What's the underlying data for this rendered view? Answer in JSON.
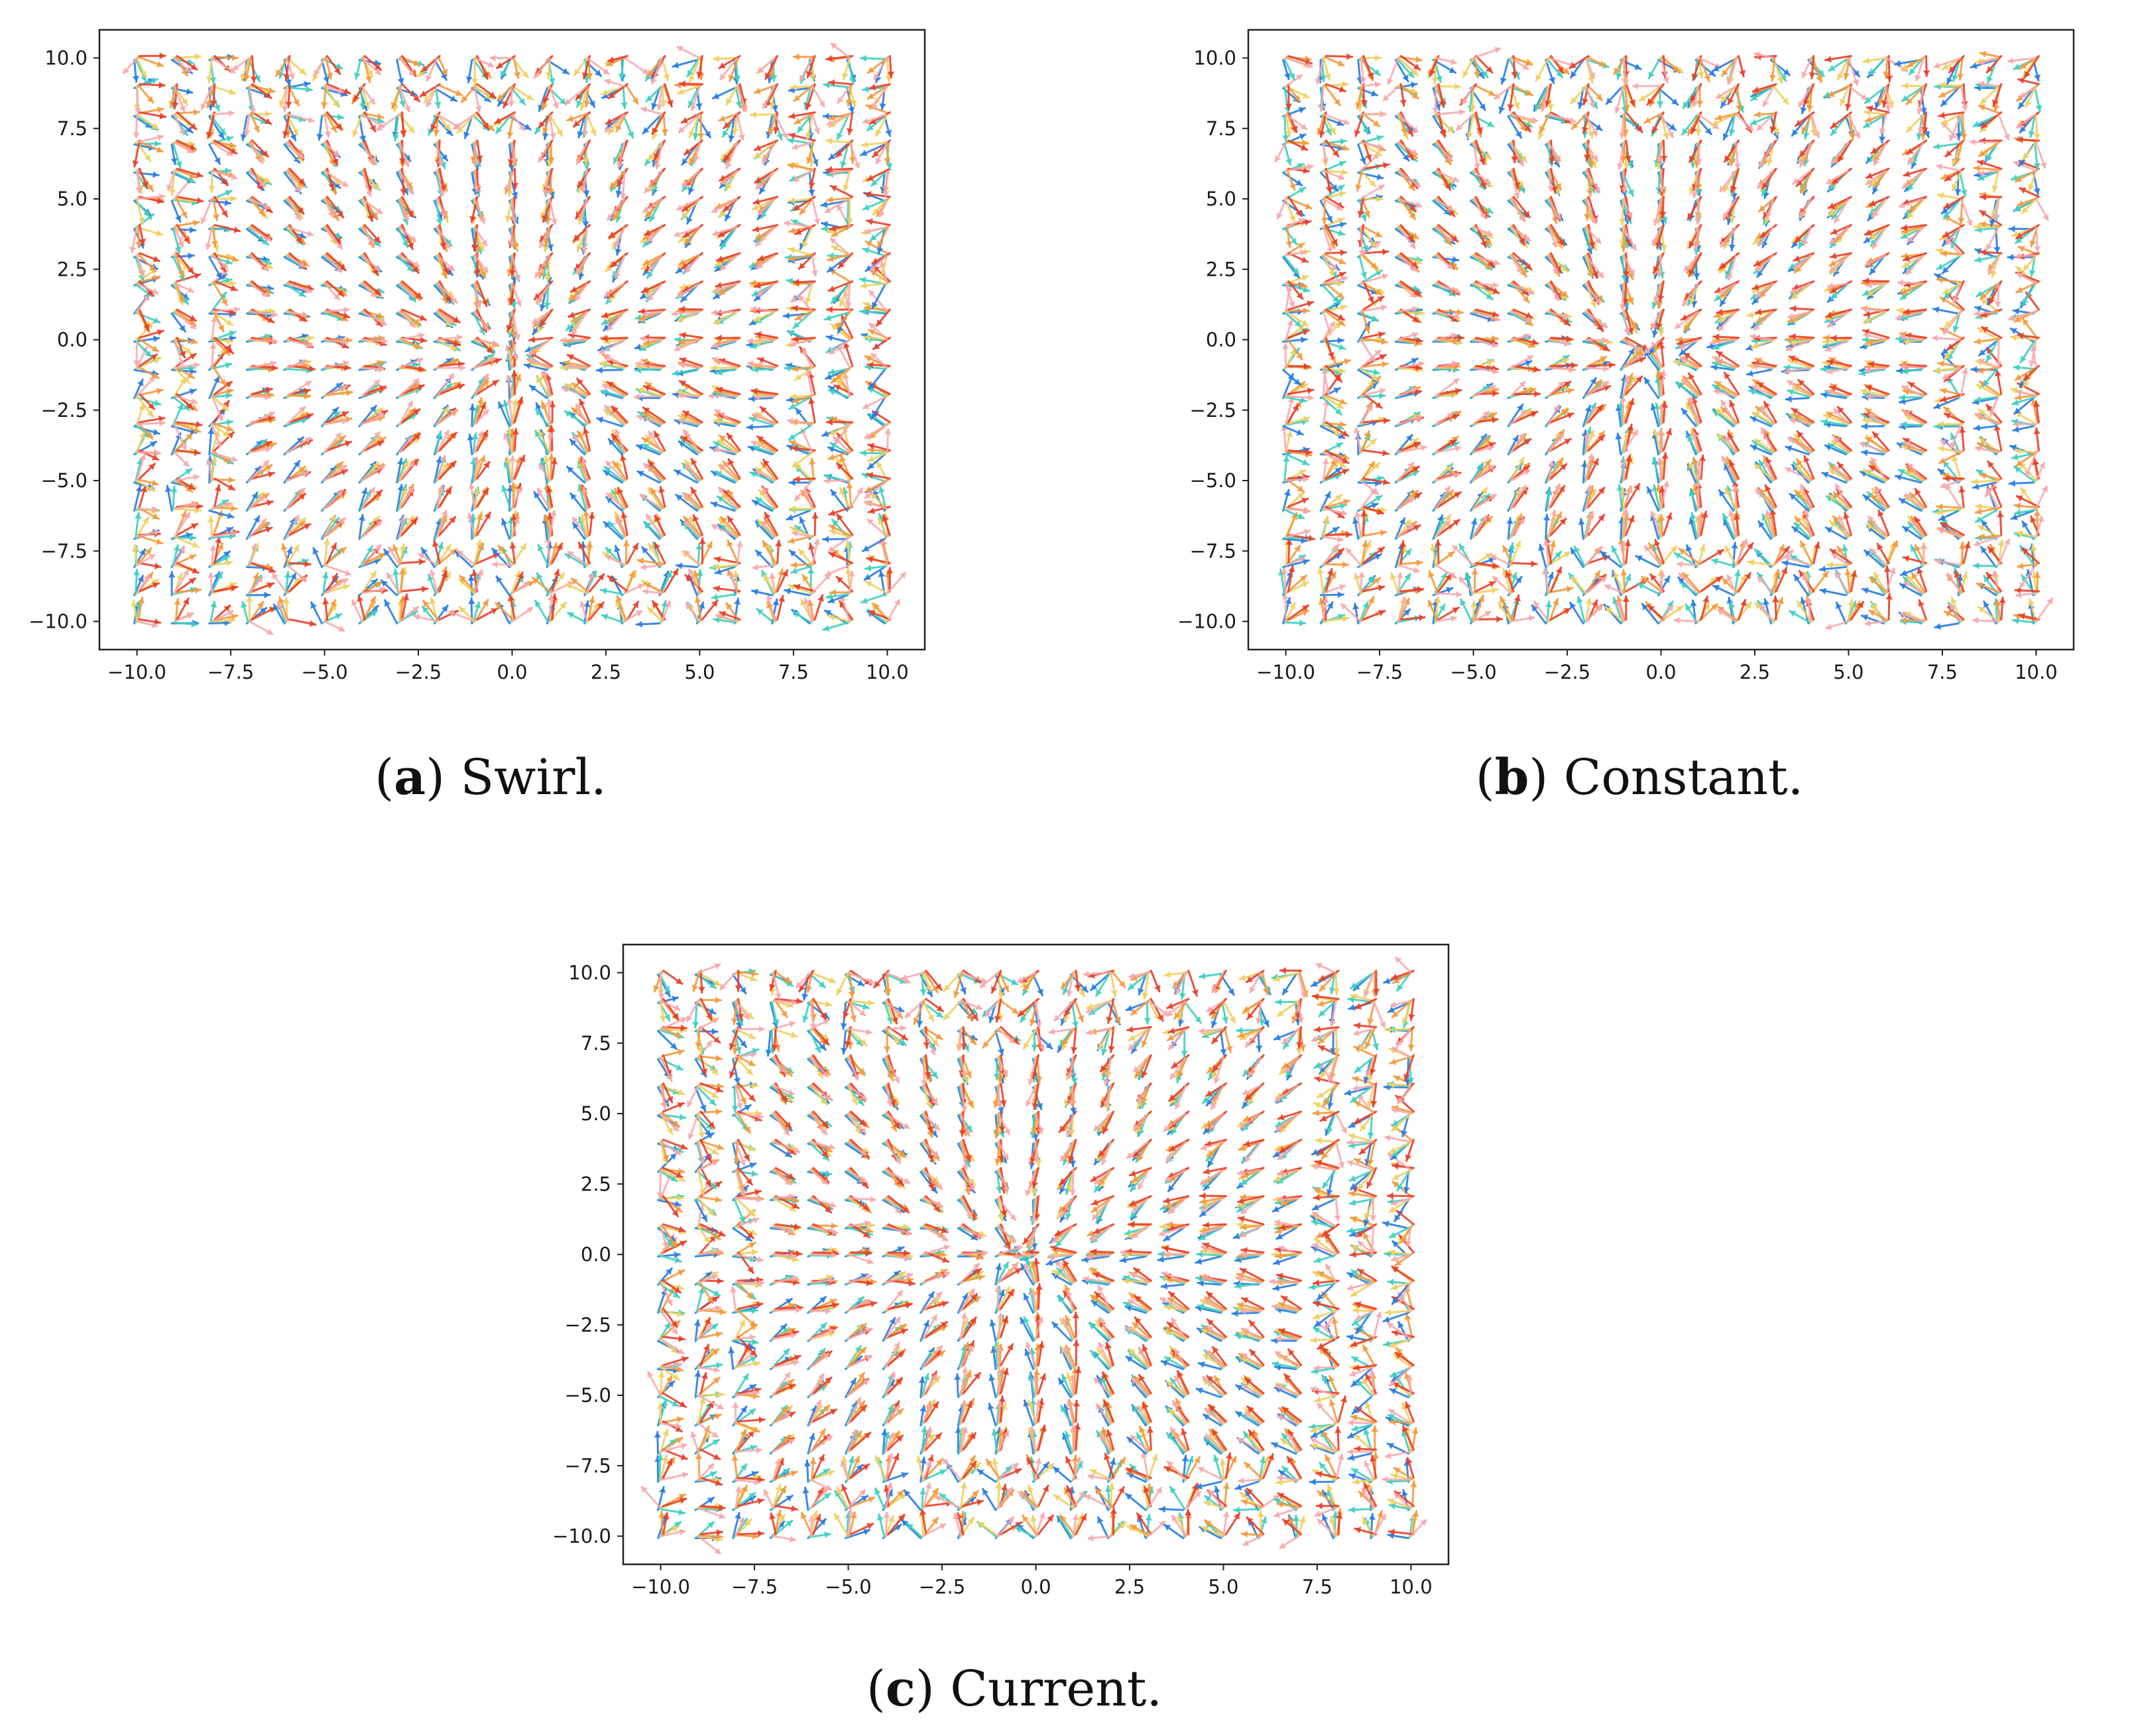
{
  "chart_data": [
    {
      "type": "quiver",
      "panel": "a",
      "caption_letter": "a",
      "caption_text": "Swirl.",
      "xlim": [
        -11.0,
        11.0
      ],
      "ylim": [
        -11.0,
        11.0
      ],
      "xticks": [
        -10.0,
        -7.5,
        -5.0,
        -2.5,
        0.0,
        2.5,
        5.0,
        7.5,
        10.0
      ],
      "yticks": [
        -10.0,
        -7.5,
        -5.0,
        -2.5,
        0.0,
        2.5,
        5.0,
        7.5,
        10.0
      ],
      "xtick_labels": [
        "−10.0",
        "−7.5",
        "−5.0",
        "−2.5",
        "0.0",
        "2.5",
        "5.0",
        "7.5",
        "10.0"
      ],
      "ytick_labels": [
        "−10.0",
        "−7.5",
        "−5.0",
        "−2.5",
        "0.0",
        "2.5",
        "5.0",
        "7.5",
        "10.0"
      ],
      "grid": false,
      "grid_x": {
        "start": -10.0,
        "stop": 10.0,
        "count": 21
      },
      "grid_y": {
        "start": -10.0,
        "stop": 10.0,
        "count": 21
      },
      "center": [
        0.0,
        -0.5
      ],
      "field": "sink-to-center",
      "colormap": "rainbow (purple → blue → green → yellow → orange → red → light pink)"
    },
    {
      "type": "quiver",
      "panel": "b",
      "caption_letter": "b",
      "caption_text": "Constant.",
      "xlim": [
        -11.0,
        11.0
      ],
      "ylim": [
        -11.0,
        11.0
      ],
      "xticks": [
        -10.0,
        -7.5,
        -5.0,
        -2.5,
        0.0,
        2.5,
        5.0,
        7.5,
        10.0
      ],
      "yticks": [
        -10.0,
        -7.5,
        -5.0,
        -2.5,
        0.0,
        2.5,
        5.0,
        7.5,
        10.0
      ],
      "xtick_labels": [
        "−10.0",
        "−7.5",
        "−5.0",
        "−2.5",
        "0.0",
        "2.5",
        "5.0",
        "7.5",
        "10.0"
      ],
      "ytick_labels": [
        "−10.0",
        "−7.5",
        "−5.0",
        "−2.5",
        "0.0",
        "2.5",
        "5.0",
        "7.5",
        "10.0"
      ],
      "grid": false,
      "grid_x": {
        "start": -10.0,
        "stop": 10.0,
        "count": 21
      },
      "grid_y": {
        "start": -10.0,
        "stop": 10.0,
        "count": 21
      },
      "center": [
        -0.3,
        -0.4
      ],
      "field": "sink-to-center",
      "colormap": "rainbow (purple → blue → green → yellow → orange → red → light pink)"
    },
    {
      "type": "quiver",
      "panel": "c",
      "caption_letter": "c",
      "caption_text": "Current.",
      "xlim": [
        -11.0,
        11.0
      ],
      "ylim": [
        -11.0,
        11.0
      ],
      "xticks": [
        -10.0,
        -7.5,
        -5.0,
        -2.5,
        0.0,
        2.5,
        5.0,
        7.5,
        10.0
      ],
      "yticks": [
        -10.0,
        -7.5,
        -5.0,
        -2.5,
        0.0,
        2.5,
        5.0,
        7.5,
        10.0
      ],
      "xtick_labels": [
        "−10.0",
        "−7.5",
        "−5.0",
        "−2.5",
        "0.0",
        "2.5",
        "5.0",
        "7.5",
        "10.0"
      ],
      "ytick_labels": [
        "−10.0",
        "−7.5",
        "−5.0",
        "−2.5",
        "0.0",
        "2.5",
        "5.0",
        "7.5",
        "10.0"
      ],
      "grid": false,
      "grid_x": {
        "start": -10.0,
        "stop": 10.0,
        "count": 21
      },
      "grid_y": {
        "start": -10.0,
        "stop": 10.0,
        "count": 21
      },
      "center": [
        -0.3,
        0.0
      ],
      "field": "sink-to-center",
      "colormap": "rainbow (purple → blue → green → yellow → orange → red → light pink)"
    }
  ],
  "colors": {
    "arrow_palette": [
      "#6a2cc9",
      "#2a7de1",
      "#3fd0c0",
      "#7ee07a",
      "#f0d060",
      "#f59a3c",
      "#e8402a",
      "#f7a8ad"
    ],
    "axes": "#222222",
    "text": "#111111"
  }
}
